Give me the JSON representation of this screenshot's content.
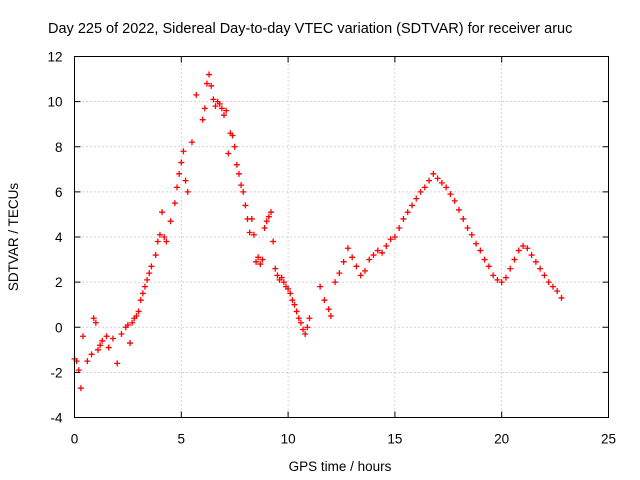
{
  "chart_data": {
    "type": "scatter",
    "title": "Day 225 of 2022, Sidereal Day-to-day VTEC variation (SDTVAR) for receiver aruc",
    "xlabel": "GPS time / hours",
    "ylabel": "SDTVAR / TECUs",
    "xlim": [
      0,
      25
    ],
    "ylim": [
      -4,
      12
    ],
    "xticks": [
      0,
      5,
      10,
      15,
      20,
      25
    ],
    "yticks": [
      -4,
      -2,
      0,
      2,
      4,
      6,
      8,
      10,
      12
    ],
    "grid": true,
    "marker": "+",
    "color": "#ff0000",
    "series": [
      {
        "name": "aruc",
        "x": [
          0.0,
          0.1,
          0.2,
          0.3,
          0.4,
          0.6,
          0.8,
          0.9,
          1.0,
          1.1,
          1.2,
          1.3,
          1.5,
          1.6,
          1.8,
          2.0,
          2.2,
          2.4,
          2.5,
          2.6,
          2.7,
          2.8,
          2.9,
          3.0,
          3.1,
          3.2,
          3.3,
          3.4,
          3.5,
          3.6,
          3.8,
          3.9,
          4.0,
          4.1,
          4.2,
          4.3,
          4.5,
          4.7,
          4.8,
          4.9,
          5.0,
          5.1,
          5.2,
          5.3,
          5.5,
          5.7,
          6.0,
          6.1,
          6.2,
          6.3,
          6.4,
          6.5,
          6.6,
          6.7,
          6.8,
          6.9,
          7.0,
          7.1,
          7.2,
          7.3,
          7.4,
          7.5,
          7.6,
          7.7,
          7.8,
          7.9,
          8.0,
          8.1,
          8.2,
          8.3,
          8.4,
          8.5,
          8.6,
          8.7,
          8.8,
          8.9,
          9.0,
          9.1,
          9.2,
          9.3,
          9.4,
          9.5,
          9.6,
          9.7,
          9.8,
          9.9,
          10.0,
          10.1,
          10.2,
          10.3,
          10.4,
          10.5,
          10.6,
          10.7,
          10.8,
          10.9,
          11.0,
          11.5,
          11.7,
          11.9,
          12.0,
          12.2,
          12.4,
          12.6,
          12.8,
          13.0,
          13.2,
          13.4,
          13.6,
          13.8,
          14.0,
          14.2,
          14.4,
          14.6,
          14.8,
          15.0,
          15.2,
          15.4,
          15.6,
          15.8,
          16.0,
          16.2,
          16.4,
          16.6,
          16.8,
          17.0,
          17.2,
          17.4,
          17.6,
          17.8,
          18.0,
          18.2,
          18.4,
          18.6,
          18.8,
          19.0,
          19.2,
          19.4,
          19.6,
          19.8,
          20.0,
          20.2,
          20.4,
          20.6,
          20.8,
          21.0,
          21.2,
          21.4,
          21.6,
          21.8,
          22.0,
          22.2,
          22.4,
          22.6,
          22.8
        ],
        "y": [
          -1.4,
          -1.5,
          -1.9,
          -2.7,
          -0.4,
          -1.5,
          -1.2,
          0.4,
          0.2,
          -1.0,
          -0.8,
          -0.6,
          -0.4,
          -0.9,
          -0.5,
          -1.6,
          -0.3,
          0.0,
          0.1,
          -0.7,
          0.2,
          0.4,
          0.5,
          0.7,
          1.2,
          1.5,
          1.8,
          2.1,
          2.4,
          2.7,
          3.2,
          3.8,
          4.1,
          5.1,
          4.0,
          3.8,
          4.7,
          5.5,
          6.2,
          6.8,
          7.3,
          7.8,
          6.5,
          6.0,
          8.2,
          10.3,
          9.2,
          9.7,
          10.8,
          11.2,
          10.7,
          10.1,
          9.8,
          10.0,
          9.9,
          9.7,
          9.4,
          9.6,
          7.7,
          8.6,
          8.5,
          8.0,
          7.2,
          6.8,
          6.3,
          6.0,
          5.4,
          4.8,
          4.2,
          4.8,
          4.1,
          2.9,
          3.1,
          2.8,
          3.0,
          4.4,
          4.7,
          4.9,
          5.1,
          3.8,
          2.6,
          2.3,
          2.1,
          2.2,
          2.0,
          1.8,
          1.7,
          1.5,
          1.2,
          1.0,
          0.7,
          0.4,
          0.2,
          -0.1,
          -0.3,
          0.0,
          0.4,
          1.8,
          1.2,
          0.8,
          0.5,
          2.0,
          2.4,
          2.9,
          3.5,
          3.1,
          2.7,
          2.3,
          2.5,
          3.0,
          3.2,
          3.4,
          3.3,
          3.6,
          3.9,
          4.0,
          4.4,
          4.8,
          5.1,
          5.4,
          5.7,
          6.0,
          6.2,
          6.5,
          6.8,
          6.6,
          6.4,
          6.2,
          5.9,
          5.6,
          5.2,
          4.8,
          4.4,
          4.1,
          3.7,
          3.4,
          3.0,
          2.7,
          2.3,
          2.1,
          2.0,
          2.2,
          2.6,
          3.0,
          3.4,
          3.6,
          3.5,
          3.2,
          2.9,
          2.6,
          2.3,
          2.0,
          1.8,
          1.6,
          1.3
        ]
      }
    ]
  }
}
